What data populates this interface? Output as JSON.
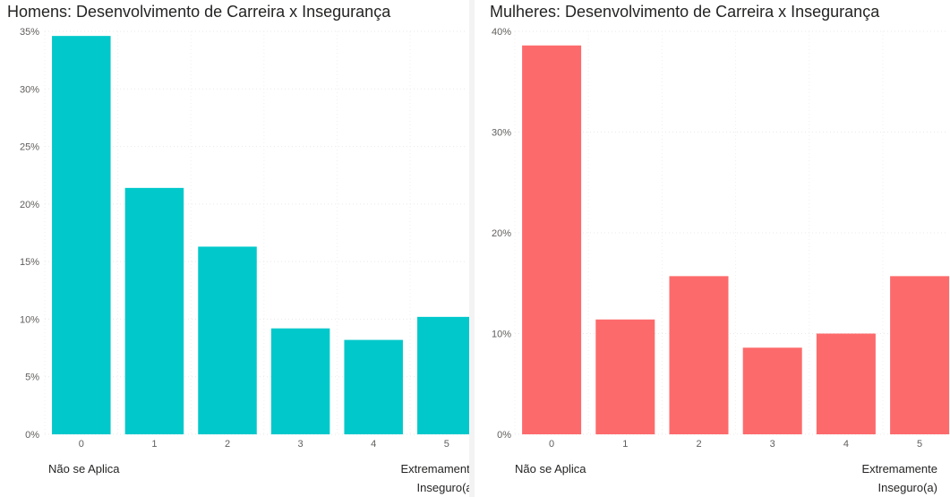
{
  "chart_data": [
    {
      "type": "bar",
      "title": "Homens: Desenvolvimento de Carreira x Insegurança",
      "categories": [
        "0",
        "1",
        "2",
        "3",
        "4",
        "5"
      ],
      "values": [
        34.6,
        21.4,
        16.3,
        9.2,
        8.2,
        10.2
      ],
      "ylim": [
        0,
        35
      ],
      "yticks": [
        "0%",
        "5%",
        "10%",
        "15%",
        "20%",
        "25%",
        "30%",
        "35%"
      ],
      "ytick_values": [
        0,
        5,
        10,
        15,
        20,
        25,
        30,
        35
      ],
      "color": "#01C8CB",
      "grid": true,
      "scale_low_label": "Não se Aplica",
      "scale_high_label_line1": "Extremamente",
      "scale_high_label_line2": "Inseguro(a)"
    },
    {
      "type": "bar",
      "title": "Mulheres: Desenvolvimento de Carreira x Insegurança",
      "categories": [
        "0",
        "1",
        "2",
        "3",
        "4",
        "5"
      ],
      "values": [
        38.6,
        11.4,
        15.7,
        8.6,
        10.0,
        15.7
      ],
      "ylim": [
        0,
        40
      ],
      "yticks": [
        "0%",
        "10%",
        "20%",
        "30%",
        "40%"
      ],
      "ytick_values": [
        0,
        10,
        20,
        30,
        40
      ],
      "color": "#FD6A6B",
      "grid": true,
      "scale_low_label": "Não se Aplica",
      "scale_high_label_line1": "Extremamente",
      "scale_high_label_line2": "Inseguro(a)"
    }
  ]
}
